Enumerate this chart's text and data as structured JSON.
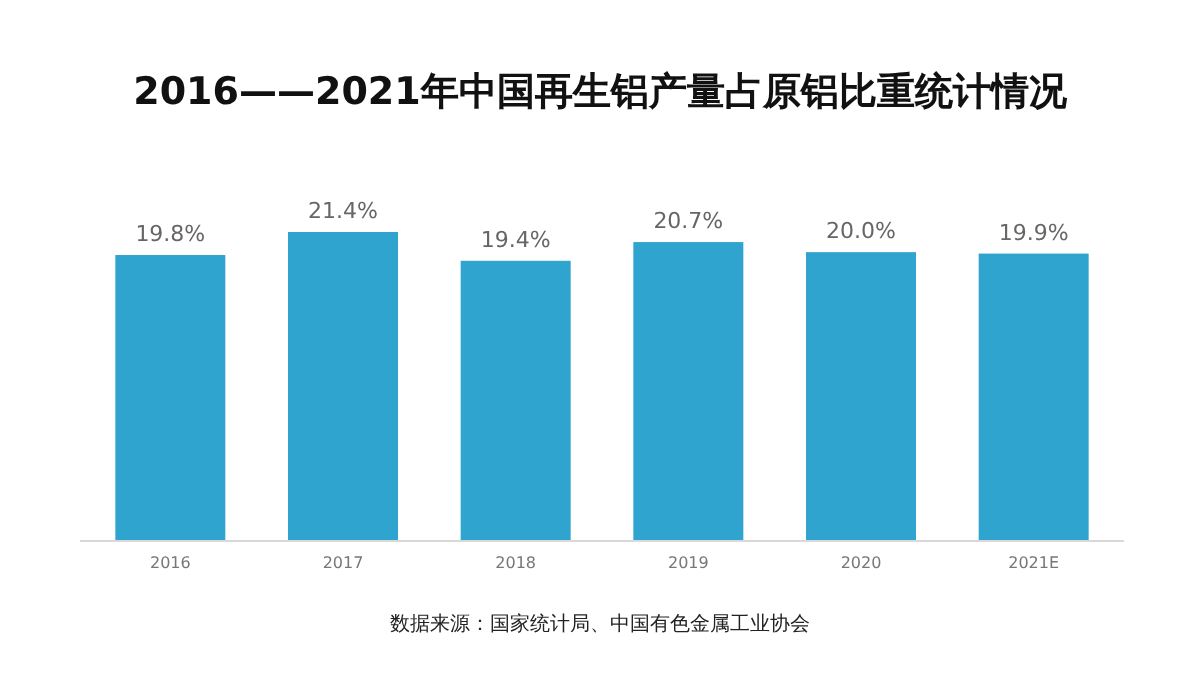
{
  "chart_data": {
    "type": "bar",
    "title": "2016——2021年中国再生铝产量占原铝比重统计情况",
    "categories": [
      "2016",
      "2017",
      "2018",
      "2019",
      "2020",
      "2021E"
    ],
    "values": [
      19.8,
      21.4,
      19.4,
      20.7,
      20.0,
      19.9
    ],
    "value_labels": [
      "19.8%",
      "21.4%",
      "19.4%",
      "20.7%",
      "20.0%",
      "19.9%"
    ],
    "color": "#2fa4cf",
    "annotations": [
      "数据来源：国家统计局、中国有色金属工业协会"
    ]
  }
}
